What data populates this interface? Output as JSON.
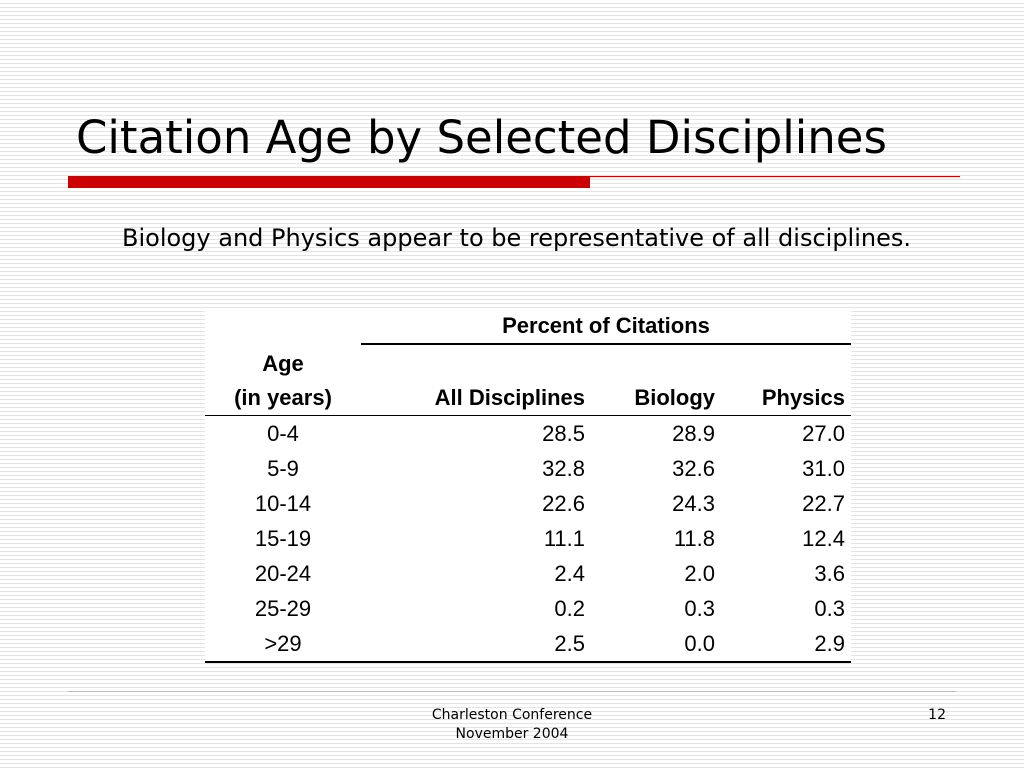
{
  "slide": {
    "title": "Citation Age by Selected Disciplines",
    "body_text": "Biology and Physics appear to be representative of all disciplines.",
    "accent_color": "#cc0000"
  },
  "table": {
    "group_header": "Percent of Citations",
    "age_header_line1": "Age",
    "age_header_line2": "(in years)",
    "columns": [
      "All Disciplines",
      "Biology",
      "Physics"
    ],
    "rows": [
      {
        "age": "0-4",
        "all": "28.5",
        "biology": "28.9",
        "physics": "27.0"
      },
      {
        "age": "5-9",
        "all": "32.8",
        "biology": "32.6",
        "physics": "31.0"
      },
      {
        "age": "10-14",
        "all": "22.6",
        "biology": "24.3",
        "physics": "22.7"
      },
      {
        "age": "15-19",
        "all": "11.1",
        "biology": "11.8",
        "physics": "12.4"
      },
      {
        "age": "20-24",
        "all": "2.4",
        "biology": "2.0",
        "physics": "3.6"
      },
      {
        "age": "25-29",
        "all": "0.2",
        "biology": "0.3",
        "physics": "0.3"
      },
      {
        "age": ">29",
        "all": "2.5",
        "biology": "0.0",
        "physics": "2.9"
      }
    ]
  },
  "footer": {
    "conference_line1": "Charleston Conference",
    "conference_line2": "November 2004",
    "page_number": "12"
  }
}
